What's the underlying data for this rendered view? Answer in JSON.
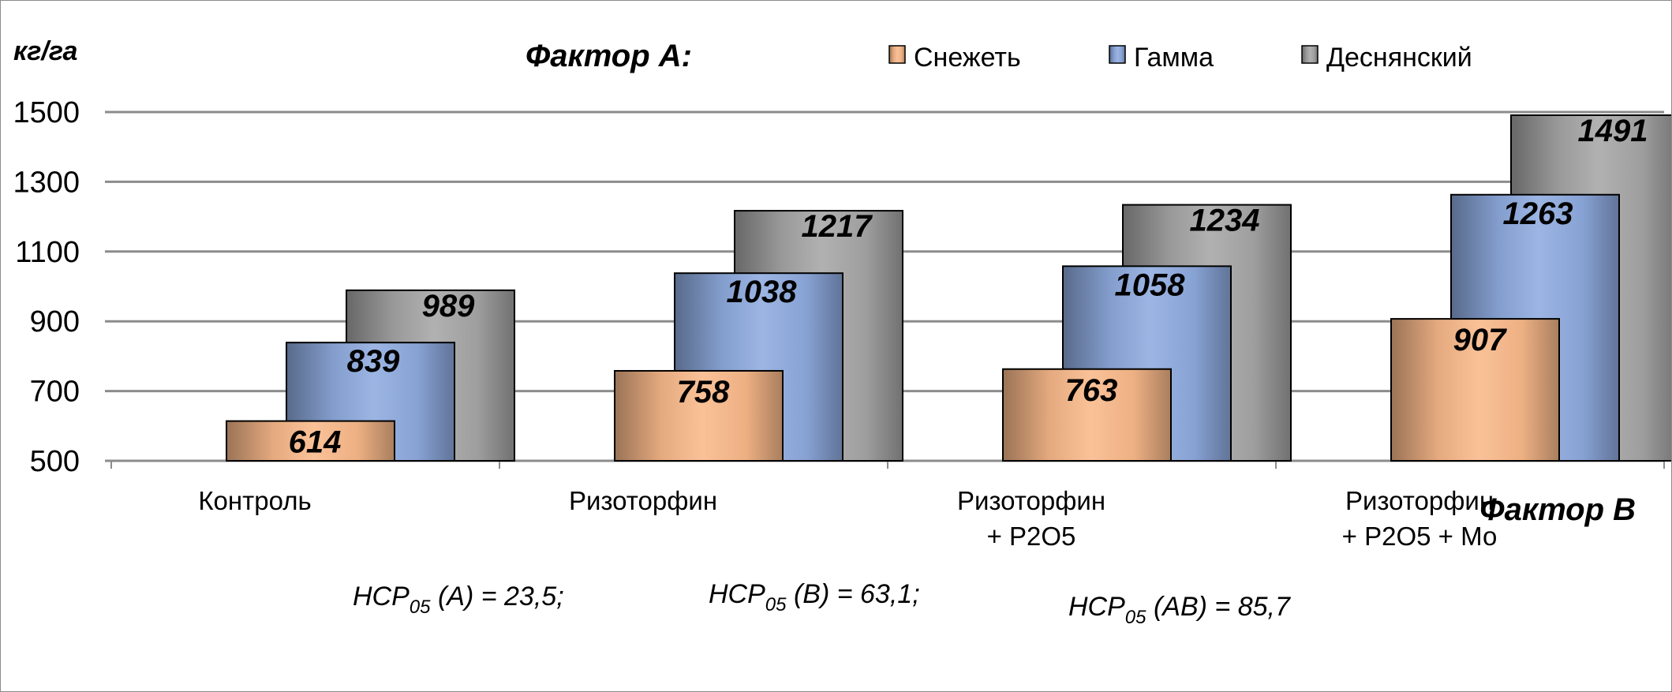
{
  "chart_data": {
    "type": "bar",
    "title": "",
    "ylabel": "кг/га",
    "xlabel": "Фактор В",
    "legend_title": "Фактор А:",
    "ylim": [
      500,
      1500
    ],
    "yticks": [
      500,
      700,
      900,
      1100,
      1300,
      1500
    ],
    "grid": true,
    "legend_position": "top-center",
    "categories": [
      [
        "Контроль"
      ],
      [
        "Ризоторфин"
      ],
      [
        "Ризоторфин",
        "+ Р2О5"
      ],
      [
        "Ризоторфин",
        "+ Р2О5 + Мо"
      ]
    ],
    "series": [
      {
        "name": "Снежеть",
        "color": "#f9b98a",
        "values": [
          614,
          758,
          763,
          907
        ]
      },
      {
        "name": "Гамма",
        "color": "#8eabdf",
        "values": [
          839,
          1038,
          1058,
          1263
        ]
      },
      {
        "name": "Деснянский",
        "color": "#a6a6a6",
        "values": [
          989,
          1217,
          1234,
          1491
        ]
      }
    ],
    "annotations": [
      {
        "main": "НСР",
        "sub": "05",
        "rest": " (A) = 23,5;"
      },
      {
        "main": "НСР",
        "sub": "05",
        "rest": " (В) = 63,1;"
      },
      {
        "main": "НСР",
        "sub": "05",
        "rest": " (АВ) = 85,7"
      }
    ]
  }
}
